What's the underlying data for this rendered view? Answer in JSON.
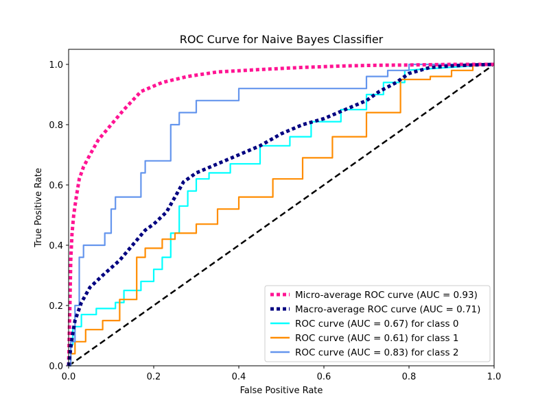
{
  "chart_data": {
    "type": "line",
    "title": "ROC Curve for Naive Bayes Classifier",
    "xlabel": "False Positive Rate",
    "ylabel": "True Positive Rate",
    "xlim": [
      0.0,
      1.0
    ],
    "ylim": [
      0.0,
      1.05
    ],
    "xticks": [
      "0.0",
      "0.2",
      "0.4",
      "0.6",
      "0.8",
      "1.0"
    ],
    "yticks": [
      "0.0",
      "0.2",
      "0.4",
      "0.6",
      "0.8",
      "1.0"
    ],
    "grid": false,
    "legend_position": "lower-right",
    "chance_line": {
      "x": [
        0,
        1
      ],
      "y": [
        0,
        1
      ],
      "color": "#000000",
      "style": "dashed"
    },
    "series": [
      {
        "name": "Micro-average ROC curve (AUC = 0.93)",
        "color": "#ff1493",
        "style": "dotted",
        "x": [
          0.0,
          0.003,
          0.005,
          0.008,
          0.012,
          0.018,
          0.025,
          0.035,
          0.05,
          0.07,
          0.1,
          0.13,
          0.17,
          0.22,
          0.28,
          0.35,
          0.45,
          0.55,
          0.65,
          0.72,
          0.8,
          0.9,
          1.0
        ],
        "y": [
          0.0,
          0.2,
          0.35,
          0.44,
          0.5,
          0.56,
          0.62,
          0.66,
          0.7,
          0.75,
          0.8,
          0.85,
          0.91,
          0.94,
          0.96,
          0.975,
          0.983,
          0.99,
          0.995,
          0.997,
          0.998,
          1.0,
          1.0
        ]
      },
      {
        "name": "Macro-average ROC curve (AUC = 0.71)",
        "color": "#000080",
        "style": "dotted",
        "x": [
          0.0,
          0.005,
          0.01,
          0.015,
          0.03,
          0.05,
          0.08,
          0.12,
          0.15,
          0.18,
          0.2,
          0.23,
          0.25,
          0.27,
          0.3,
          0.35,
          0.4,
          0.45,
          0.5,
          0.55,
          0.6,
          0.65,
          0.7,
          0.73,
          0.77,
          0.8,
          0.85,
          0.9,
          0.95,
          1.0
        ],
        "y": [
          0.0,
          0.06,
          0.11,
          0.15,
          0.21,
          0.26,
          0.3,
          0.35,
          0.4,
          0.45,
          0.47,
          0.51,
          0.56,
          0.61,
          0.64,
          0.67,
          0.7,
          0.73,
          0.77,
          0.8,
          0.82,
          0.85,
          0.88,
          0.91,
          0.94,
          0.97,
          0.99,
          0.995,
          0.998,
          1.0
        ]
      },
      {
        "name": "ROC curve (AUC = 0.67) for class 0",
        "color": "#00ffff",
        "style": "solid",
        "x": [
          0.0,
          0.005,
          0.005,
          0.01,
          0.01,
          0.03,
          0.03,
          0.065,
          0.065,
          0.11,
          0.11,
          0.13,
          0.13,
          0.17,
          0.17,
          0.2,
          0.2,
          0.22,
          0.22,
          0.24,
          0.24,
          0.26,
          0.26,
          0.28,
          0.28,
          0.3,
          0.3,
          0.33,
          0.33,
          0.38,
          0.38,
          0.45,
          0.45,
          0.52,
          0.52,
          0.57,
          0.57,
          0.64,
          0.64,
          0.7,
          0.7,
          0.74,
          0.74,
          0.79,
          0.79,
          1.0
        ],
        "y": [
          0.0,
          0.0,
          0.07,
          0.07,
          0.13,
          0.13,
          0.17,
          0.17,
          0.19,
          0.19,
          0.21,
          0.21,
          0.25,
          0.25,
          0.28,
          0.28,
          0.32,
          0.32,
          0.36,
          0.36,
          0.44,
          0.44,
          0.53,
          0.53,
          0.58,
          0.58,
          0.62,
          0.62,
          0.64,
          0.64,
          0.67,
          0.67,
          0.73,
          0.73,
          0.76,
          0.76,
          0.81,
          0.81,
          0.85,
          0.85,
          0.9,
          0.9,
          0.94,
          0.94,
          0.98,
          1.0
        ]
      },
      {
        "name": "ROC curve (AUC = 0.61) for class 1",
        "color": "#ff8c00",
        "style": "solid",
        "x": [
          0.0,
          0.005,
          0.005,
          0.015,
          0.015,
          0.04,
          0.04,
          0.08,
          0.08,
          0.12,
          0.12,
          0.16,
          0.16,
          0.18,
          0.18,
          0.22,
          0.22,
          0.25,
          0.25,
          0.3,
          0.3,
          0.35,
          0.35,
          0.4,
          0.4,
          0.48,
          0.48,
          0.55,
          0.55,
          0.62,
          0.62,
          0.7,
          0.7,
          0.78,
          0.78,
          0.85,
          0.85,
          0.9,
          0.9,
          0.95,
          0.95,
          1.0
        ],
        "y": [
          0.0,
          0.0,
          0.04,
          0.04,
          0.08,
          0.08,
          0.12,
          0.12,
          0.15,
          0.15,
          0.22,
          0.22,
          0.36,
          0.36,
          0.39,
          0.39,
          0.42,
          0.42,
          0.44,
          0.44,
          0.47,
          0.47,
          0.52,
          0.52,
          0.56,
          0.56,
          0.62,
          0.62,
          0.69,
          0.69,
          0.76,
          0.76,
          0.84,
          0.84,
          0.95,
          0.95,
          0.96,
          0.96,
          0.98,
          0.98,
          0.995,
          1.0
        ]
      },
      {
        "name": "ROC curve (AUC = 0.83) for class 2",
        "color": "#6495ed",
        "style": "solid",
        "x": [
          0.0,
          0.005,
          0.005,
          0.015,
          0.015,
          0.025,
          0.025,
          0.035,
          0.035,
          0.085,
          0.085,
          0.1,
          0.1,
          0.11,
          0.11,
          0.17,
          0.17,
          0.18,
          0.18,
          0.24,
          0.24,
          0.26,
          0.26,
          0.3,
          0.3,
          0.4,
          0.4,
          0.7,
          0.7,
          0.75,
          0.75,
          0.8,
          0.8,
          1.0
        ],
        "y": [
          0.0,
          0.0,
          0.08,
          0.08,
          0.2,
          0.2,
          0.36,
          0.36,
          0.4,
          0.4,
          0.44,
          0.44,
          0.52,
          0.52,
          0.56,
          0.56,
          0.64,
          0.64,
          0.68,
          0.68,
          0.8,
          0.8,
          0.84,
          0.84,
          0.88,
          0.88,
          0.92,
          0.92,
          0.96,
          0.96,
          0.98,
          0.98,
          1.0,
          1.0
        ]
      }
    ]
  }
}
